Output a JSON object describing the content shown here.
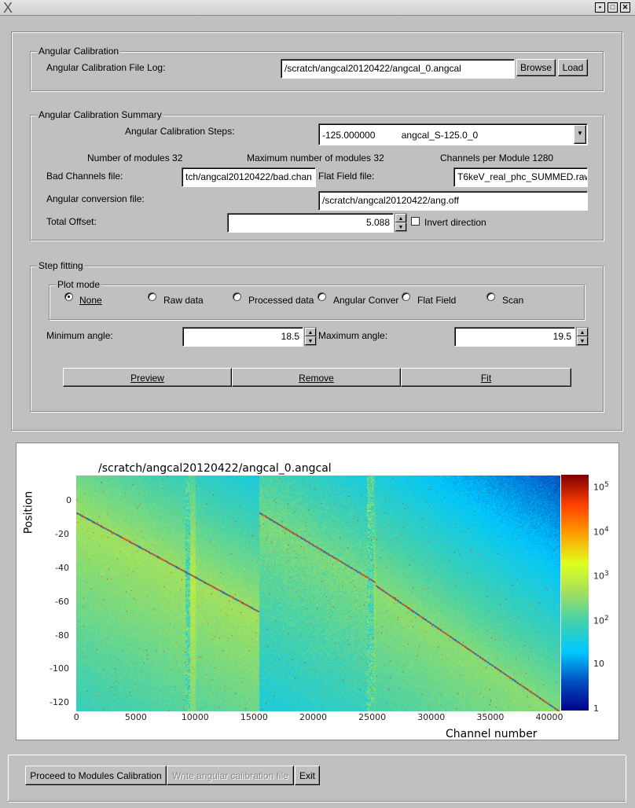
{
  "window": {
    "logo": "X",
    "buttons": [
      "minimize",
      "maximize",
      "close"
    ]
  },
  "angular_calibration": {
    "title": "Angular Calibration",
    "file_log_label": "Angular Calibration File Log:",
    "file_log_value": "/scratch/angcal20120422/angcal_0.angcal",
    "browse": "Browse",
    "load": "Load"
  },
  "summary": {
    "title": "Angular Calibration Summary",
    "steps_label": "Angular Calibration Steps:",
    "steps_value": "-125.000000",
    "steps_name": "angcal_S-125.0_0",
    "num_modules": "Number of modules 32",
    "max_modules": "Maximum number of modules 32",
    "channels_per_module": "Channels per Module 1280",
    "bad_channels_label": "Bad Channels file:",
    "bad_channels_value": "tch/angcal20120422/bad.chan",
    "flat_field_label": "Flat Field file:",
    "flat_field_value": "T6keV_real_phc_SUMMED.raw",
    "ang_conv_label": "Angular conversion file:",
    "ang_conv_value": "/scratch/angcal20120422/ang.off",
    "offset_label": "Total Offset:",
    "offset_value": "5.088",
    "invert_label": "Invert direction",
    "invert_checked": false
  },
  "step_fitting": {
    "title": "Step fitting",
    "plot_mode_title": "Plot mode",
    "modes": [
      {
        "label": "None",
        "selected": true
      },
      {
        "label": "Raw data",
        "selected": false
      },
      {
        "label": "Processed data",
        "selected": false
      },
      {
        "label": "Angular Conver",
        "selected": false
      },
      {
        "label": "Flat Field",
        "selected": false
      },
      {
        "label": "Scan",
        "selected": false
      }
    ],
    "min_angle_label": "Minimum angle:",
    "min_angle_value": "18.5",
    "max_angle_label": "Maximum angle:",
    "max_angle_value": "19.5",
    "preview": "Preview",
    "remove": "Remove",
    "fit": "Fit"
  },
  "chart_data": {
    "type": "heatmap",
    "title": "/scratch/angcal20120422/angcal_0.angcal",
    "xlabel": "Channel number",
    "ylabel": "Position",
    "xlim": [
      0,
      41000
    ],
    "ylim": [
      -125,
      15
    ],
    "xticks": [
      "0",
      "5000",
      "10000",
      "15000",
      "20000",
      "25000",
      "30000",
      "35000",
      "40000"
    ],
    "yticks": [
      "0",
      "-20",
      "-40",
      "-60",
      "-80",
      "-100",
      "-120"
    ],
    "colorbar": {
      "scale": "log",
      "range": [
        1,
        200000
      ],
      "ticks": [
        "1",
        "10",
        "10^2",
        "10^3",
        "10^4",
        "10^5"
      ]
    },
    "colormap": [
      "#00008b",
      "#0050c0",
      "#00c8ff",
      "#40d0b0",
      "#a0e060",
      "#e0ff20",
      "#ffa000",
      "#ff4000",
      "#800000"
    ]
  },
  "footer": {
    "proceed": "Proceed to Modules Calibration",
    "write": "Write angular calibration file",
    "exit": "Exit"
  }
}
